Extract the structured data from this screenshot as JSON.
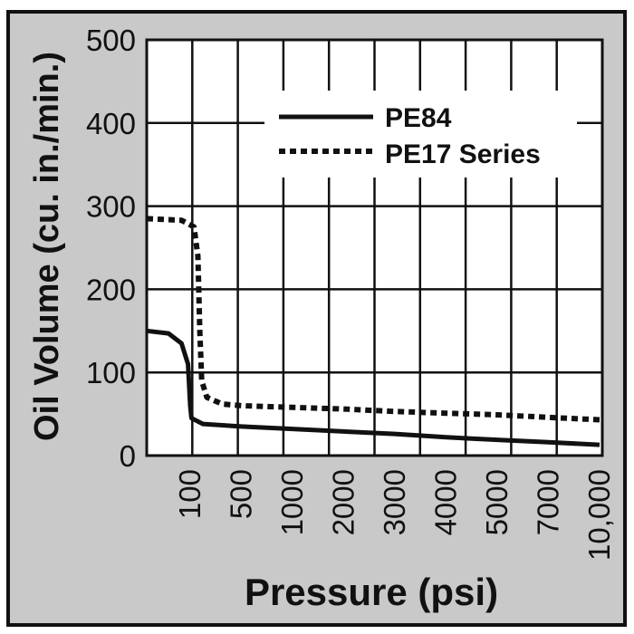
{
  "chart_data": {
    "type": "line",
    "title": "",
    "xlabel": "Pressure (psi)",
    "ylabel": "Oil Volume (cu. in./min.)",
    "x_tick_labels": [
      "100",
      "500",
      "1000",
      "2000",
      "3000",
      "4000",
      "5000",
      "7000",
      "10,000"
    ],
    "x_tick_values": [
      100,
      500,
      1000,
      2000,
      3000,
      4000,
      5000,
      7000,
      10000
    ],
    "y_ticks": [
      0,
      100,
      200,
      300,
      400,
      500
    ],
    "ylim": [
      0,
      500
    ],
    "grid": true,
    "legend_position": "top-right",
    "series": [
      {
        "name": "PE84",
        "style": "solid",
        "color": "#111111",
        "points": [
          [
            0,
            150
          ],
          [
            50,
            147
          ],
          [
            80,
            135
          ],
          [
            95,
            110
          ],
          [
            100,
            60
          ],
          [
            110,
            45
          ],
          [
            200,
            38
          ],
          [
            500,
            35
          ],
          [
            1000,
            32
          ],
          [
            2000,
            29
          ],
          [
            3000,
            26
          ],
          [
            4000,
            22
          ],
          [
            5000,
            19
          ],
          [
            7000,
            16
          ],
          [
            10000,
            13
          ]
        ]
      },
      {
        "name": "PE17 Series",
        "style": "dotted",
        "color": "#111111",
        "points": [
          [
            0,
            285
          ],
          [
            80,
            283
          ],
          [
            130,
            275
          ],
          [
            160,
            240
          ],
          [
            175,
            150
          ],
          [
            190,
            90
          ],
          [
            230,
            70
          ],
          [
            350,
            62
          ],
          [
            500,
            60
          ],
          [
            1000,
            58
          ],
          [
            2000,
            56
          ],
          [
            3000,
            53
          ],
          [
            4000,
            51
          ],
          [
            5000,
            49
          ],
          [
            7000,
            46
          ],
          [
            10000,
            43
          ]
        ]
      }
    ]
  }
}
